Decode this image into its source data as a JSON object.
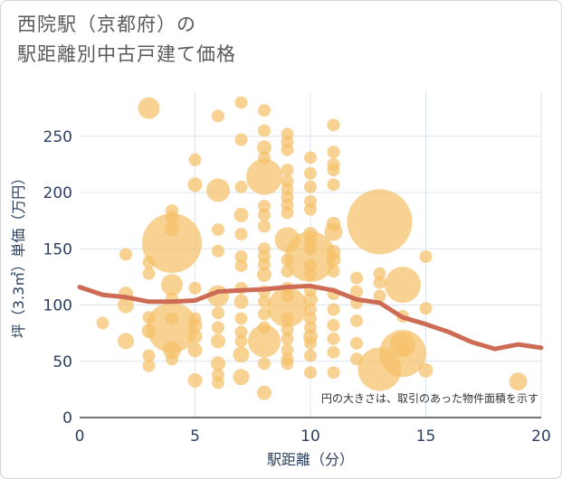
{
  "title": {
    "line1": "西院駅（京都府）の",
    "line2": "駅距離別中古戸建て価格"
  },
  "colors": {
    "bubble": "#f5c06a",
    "line": "#cd6b55",
    "grid": "#d9e4ef",
    "axis_text": "#2a3f5f"
  },
  "chart_data": {
    "type": "scatter",
    "xlabel": "駅距離（分）",
    "ylabel": "坪（3.3㎡）単価（万円）",
    "xlim": [
      0,
      20
    ],
    "ylim": [
      0,
      290
    ],
    "x_ticks": [
      0,
      5,
      10,
      15,
      20
    ],
    "y_ticks": [
      0,
      50,
      100,
      150,
      200,
      250
    ],
    "note": "円の大きさは、取引のあった物件面積を示す",
    "bubbles": [
      {
        "x": 3,
        "y": 275,
        "s": 12
      },
      {
        "x": 6,
        "y": 268,
        "s": 7
      },
      {
        "x": 7,
        "y": 280,
        "s": 7
      },
      {
        "x": 8,
        "y": 273,
        "s": 7
      },
      {
        "x": 7,
        "y": 247,
        "s": 7
      },
      {
        "x": 8,
        "y": 255,
        "s": 7
      },
      {
        "x": 8,
        "y": 240,
        "s": 8
      },
      {
        "x": 9,
        "y": 252,
        "s": 7
      },
      {
        "x": 9,
        "y": 245,
        "s": 7
      },
      {
        "x": 9,
        "y": 238,
        "s": 7
      },
      {
        "x": 11,
        "y": 260,
        "s": 7
      },
      {
        "x": 11,
        "y": 236,
        "s": 7
      },
      {
        "x": 5,
        "y": 229,
        "s": 7
      },
      {
        "x": 8,
        "y": 231,
        "s": 7
      },
      {
        "x": 10,
        "y": 231,
        "s": 7
      },
      {
        "x": 11,
        "y": 225,
        "s": 7
      },
      {
        "x": 11,
        "y": 220,
        "s": 7
      },
      {
        "x": 8,
        "y": 214,
        "s": 20
      },
      {
        "x": 9,
        "y": 220,
        "s": 7
      },
      {
        "x": 9,
        "y": 210,
        "s": 7
      },
      {
        "x": 9,
        "y": 203,
        "s": 7
      },
      {
        "x": 10,
        "y": 217,
        "s": 7
      },
      {
        "x": 10,
        "y": 205,
        "s": 7
      },
      {
        "x": 11,
        "y": 207,
        "s": 7
      },
      {
        "x": 5,
        "y": 207,
        "s": 8
      },
      {
        "x": 6,
        "y": 202,
        "s": 13
      },
      {
        "x": 7,
        "y": 205,
        "s": 7
      },
      {
        "x": 9,
        "y": 196,
        "s": 7
      },
      {
        "x": 9,
        "y": 189,
        "s": 7
      },
      {
        "x": 9,
        "y": 182,
        "s": 7
      },
      {
        "x": 10,
        "y": 192,
        "s": 7
      },
      {
        "x": 10,
        "y": 185,
        "s": 7
      },
      {
        "x": 8,
        "y": 188,
        "s": 7
      },
      {
        "x": 8,
        "y": 180,
        "s": 7
      },
      {
        "x": 4,
        "y": 184,
        "s": 7
      },
      {
        "x": 4,
        "y": 178,
        "s": 7
      },
      {
        "x": 7,
        "y": 180,
        "s": 8
      },
      {
        "x": 8,
        "y": 170,
        "s": 7
      },
      {
        "x": 4,
        "y": 168,
        "s": 8
      },
      {
        "x": 6,
        "y": 167,
        "s": 7
      },
      {
        "x": 7,
        "y": 163,
        "s": 7
      },
      {
        "x": 11,
        "y": 172,
        "s": 8
      },
      {
        "x": 11,
        "y": 165,
        "s": 10
      },
      {
        "x": 13,
        "y": 174,
        "s": 36
      },
      {
        "x": 4,
        "y": 155,
        "s": 33
      },
      {
        "x": 9,
        "y": 158,
        "s": 14
      },
      {
        "x": 10,
        "y": 163,
        "s": 8
      },
      {
        "x": 10,
        "y": 157,
        "s": 7
      },
      {
        "x": 10,
        "y": 150,
        "s": 7
      },
      {
        "x": 10,
        "y": 143,
        "s": 28
      },
      {
        "x": 11,
        "y": 147,
        "s": 8
      },
      {
        "x": 11,
        "y": 140,
        "s": 8
      },
      {
        "x": 8,
        "y": 150,
        "s": 7
      },
      {
        "x": 8,
        "y": 143,
        "s": 7
      },
      {
        "x": 6,
        "y": 148,
        "s": 7
      },
      {
        "x": 2,
        "y": 145,
        "s": 7
      },
      {
        "x": 3,
        "y": 138,
        "s": 7
      },
      {
        "x": 3,
        "y": 128,
        "s": 7
      },
      {
        "x": 7,
        "y": 143,
        "s": 7
      },
      {
        "x": 7,
        "y": 135,
        "s": 7
      },
      {
        "x": 8,
        "y": 136,
        "s": 7
      },
      {
        "x": 8,
        "y": 127,
        "s": 8
      },
      {
        "x": 9,
        "y": 140,
        "s": 7
      },
      {
        "x": 9,
        "y": 130,
        "s": 7
      },
      {
        "x": 10,
        "y": 135,
        "s": 7
      },
      {
        "x": 10,
        "y": 127,
        "s": 7
      },
      {
        "x": 11,
        "y": 130,
        "s": 7
      },
      {
        "x": 13,
        "y": 128,
        "s": 7
      },
      {
        "x": 13,
        "y": 120,
        "s": 7
      },
      {
        "x": 14,
        "y": 118,
        "s": 20
      },
      {
        "x": 15,
        "y": 143,
        "s": 7
      },
      {
        "x": 12,
        "y": 124,
        "s": 7
      },
      {
        "x": 4,
        "y": 118,
        "s": 12
      },
      {
        "x": 5,
        "y": 115,
        "s": 7
      },
      {
        "x": 2,
        "y": 110,
        "s": 8
      },
      {
        "x": 2,
        "y": 100,
        "s": 9
      },
      {
        "x": 4,
        "y": 106,
        "s": 7
      },
      {
        "x": 6,
        "y": 108,
        "s": 12
      },
      {
        "x": 7,
        "y": 115,
        "s": 7
      },
      {
        "x": 7,
        "y": 103,
        "s": 8
      },
      {
        "x": 8,
        "y": 112,
        "s": 7
      },
      {
        "x": 8,
        "y": 103,
        "s": 7
      },
      {
        "x": 9,
        "y": 115,
        "s": 7
      },
      {
        "x": 9,
        "y": 108,
        "s": 7
      },
      {
        "x": 9,
        "y": 98,
        "s": 22
      },
      {
        "x": 10,
        "y": 113,
        "s": 7
      },
      {
        "x": 10,
        "y": 105,
        "s": 8
      },
      {
        "x": 10,
        "y": 96,
        "s": 7
      },
      {
        "x": 11,
        "y": 110,
        "s": 7
      },
      {
        "x": 11,
        "y": 96,
        "s": 7
      },
      {
        "x": 12,
        "y": 112,
        "s": 7
      },
      {
        "x": 12,
        "y": 102,
        "s": 7
      },
      {
        "x": 13,
        "y": 108,
        "s": 7
      },
      {
        "x": 15,
        "y": 97,
        "s": 7
      },
      {
        "x": 14,
        "y": 90,
        "s": 7
      },
      {
        "x": 1,
        "y": 84,
        "s": 7
      },
      {
        "x": 3,
        "y": 89,
        "s": 7
      },
      {
        "x": 3,
        "y": 77,
        "s": 8
      },
      {
        "x": 4,
        "y": 88,
        "s": 7
      },
      {
        "x": 4,
        "y": 80,
        "s": 28
      },
      {
        "x": 5,
        "y": 88,
        "s": 7
      },
      {
        "x": 5,
        "y": 82,
        "s": 8
      },
      {
        "x": 5,
        "y": 72,
        "s": 8
      },
      {
        "x": 6,
        "y": 93,
        "s": 7
      },
      {
        "x": 6,
        "y": 80,
        "s": 7
      },
      {
        "x": 7,
        "y": 88,
        "s": 7
      },
      {
        "x": 7,
        "y": 76,
        "s": 7
      },
      {
        "x": 7,
        "y": 68,
        "s": 7
      },
      {
        "x": 8,
        "y": 92,
        "s": 7
      },
      {
        "x": 8,
        "y": 80,
        "s": 7
      },
      {
        "x": 8,
        "y": 68,
        "s": 18
      },
      {
        "x": 9,
        "y": 88,
        "s": 7
      },
      {
        "x": 9,
        "y": 78,
        "s": 7
      },
      {
        "x": 9,
        "y": 70,
        "s": 7
      },
      {
        "x": 10,
        "y": 88,
        "s": 7
      },
      {
        "x": 10,
        "y": 80,
        "s": 7
      },
      {
        "x": 10,
        "y": 72,
        "s": 8
      },
      {
        "x": 10,
        "y": 66,
        "s": 7
      },
      {
        "x": 11,
        "y": 82,
        "s": 7
      },
      {
        "x": 11,
        "y": 70,
        "s": 7
      },
      {
        "x": 12,
        "y": 86,
        "s": 7
      },
      {
        "x": 12,
        "y": 66,
        "s": 7
      },
      {
        "x": 14,
        "y": 65,
        "s": 14
      },
      {
        "x": 14,
        "y": 60,
        "s": 7
      },
      {
        "x": 14,
        "y": 57,
        "s": 26
      },
      {
        "x": 2,
        "y": 68,
        "s": 9
      },
      {
        "x": 3,
        "y": 55,
        "s": 7
      },
      {
        "x": 3,
        "y": 46,
        "s": 7
      },
      {
        "x": 4,
        "y": 60,
        "s": 10
      },
      {
        "x": 4,
        "y": 52,
        "s": 7
      },
      {
        "x": 5,
        "y": 60,
        "s": 8
      },
      {
        "x": 5,
        "y": 33,
        "s": 8
      },
      {
        "x": 6,
        "y": 68,
        "s": 8
      },
      {
        "x": 6,
        "y": 48,
        "s": 8
      },
      {
        "x": 6,
        "y": 38,
        "s": 7
      },
      {
        "x": 6,
        "y": 31,
        "s": 7
      },
      {
        "x": 7,
        "y": 56,
        "s": 9
      },
      {
        "x": 7,
        "y": 36,
        "s": 9
      },
      {
        "x": 8,
        "y": 48,
        "s": 7
      },
      {
        "x": 8,
        "y": 22,
        "s": 8
      },
      {
        "x": 9,
        "y": 60,
        "s": 7
      },
      {
        "x": 9,
        "y": 52,
        "s": 7
      },
      {
        "x": 9,
        "y": 48,
        "s": 7
      },
      {
        "x": 10,
        "y": 55,
        "s": 7
      },
      {
        "x": 10,
        "y": 40,
        "s": 7
      },
      {
        "x": 11,
        "y": 58,
        "s": 7
      },
      {
        "x": 11,
        "y": 40,
        "s": 7
      },
      {
        "x": 12,
        "y": 52,
        "s": 7
      },
      {
        "x": 13,
        "y": 43,
        "s": 24
      },
      {
        "x": 15,
        "y": 42,
        "s": 8
      },
      {
        "x": 19,
        "y": 32,
        "s": 10
      }
    ],
    "trend": {
      "x": [
        0,
        1,
        2,
        3,
        4,
        5,
        6,
        7,
        8,
        9,
        10,
        11,
        12,
        13,
        14,
        15,
        16,
        17,
        18,
        19,
        20
      ],
      "y": [
        116,
        109,
        107,
        103,
        103,
        104,
        112,
        113,
        114,
        116,
        117,
        113,
        105,
        102,
        89,
        83,
        76,
        67,
        61,
        65,
        62
      ]
    }
  }
}
